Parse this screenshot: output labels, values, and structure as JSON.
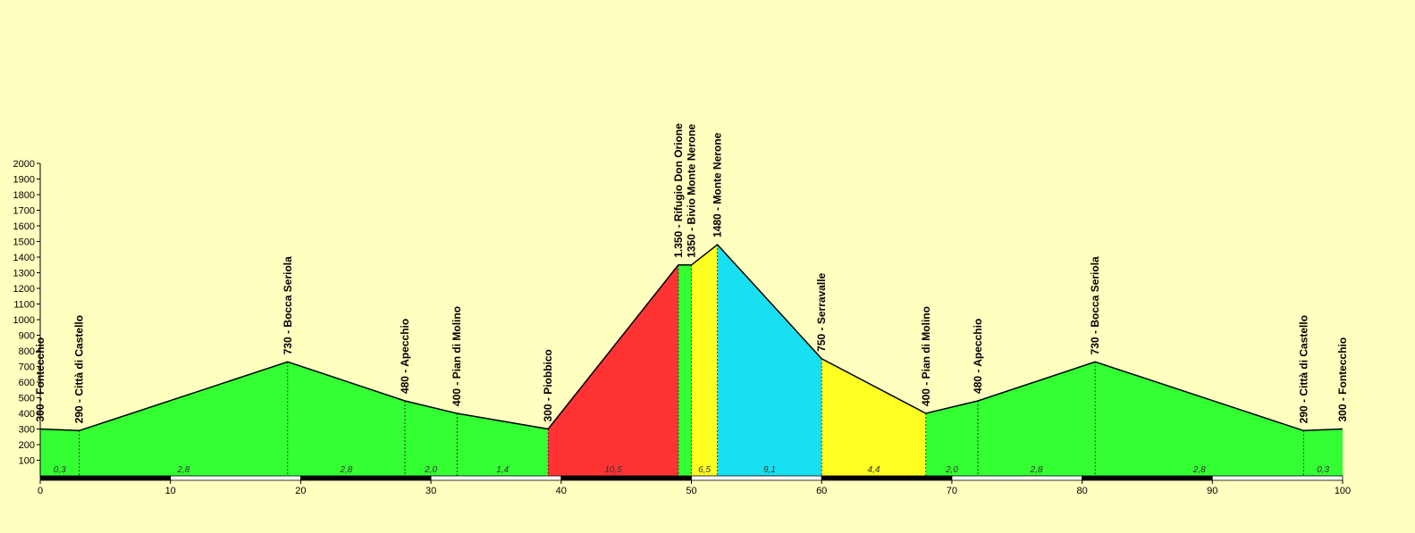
{
  "chart_data": {
    "type": "area",
    "title": "",
    "xlabel": "",
    "ylabel": "",
    "xlim": [
      0,
      100
    ],
    "ylim": [
      0,
      2000
    ],
    "x_ticks": [
      0,
      10,
      20,
      30,
      40,
      50,
      60,
      70,
      80,
      90,
      100
    ],
    "y_ticks": [
      100,
      200,
      300,
      400,
      500,
      600,
      700,
      800,
      900,
      1000,
      1100,
      1200,
      1300,
      1400,
      1500,
      1600,
      1700,
      1800,
      1900,
      2000
    ],
    "profile": [
      {
        "x": 0,
        "y": 300
      },
      {
        "x": 3,
        "y": 290
      },
      {
        "x": 19,
        "y": 730
      },
      {
        "x": 28,
        "y": 480
      },
      {
        "x": 32,
        "y": 400
      },
      {
        "x": 39,
        "y": 300
      },
      {
        "x": 49,
        "y": 1350
      },
      {
        "x": 50,
        "y": 1350
      },
      {
        "x": 52,
        "y": 1480
      },
      {
        "x": 60,
        "y": 750
      },
      {
        "x": 68,
        "y": 400
      },
      {
        "x": 72,
        "y": 480
      },
      {
        "x": 81,
        "y": 730
      },
      {
        "x": 97,
        "y": 290
      },
      {
        "x": 100,
        "y": 300
      }
    ],
    "waypoints": [
      {
        "x": 0,
        "label": "300 - Fontecchio"
      },
      {
        "x": 3,
        "label": "290 - Città di Castello"
      },
      {
        "x": 19,
        "label": "730 - Bocca Seriola"
      },
      {
        "x": 28,
        "label": "480 - Apecchio"
      },
      {
        "x": 32,
        "label": "400 - Pian di Molino"
      },
      {
        "x": 39,
        "label": "300 - Piobbico"
      },
      {
        "x": 49,
        "label": "1.350 - Rifugio Don Orione"
      },
      {
        "x": 50,
        "label": "1350 - Bivio Monte Nerone"
      },
      {
        "x": 52,
        "label": "1480 - Monte Nerone"
      },
      {
        "x": 60,
        "label": "750 - Serravalle"
      },
      {
        "x": 68,
        "label": "400 - Pian di Molino"
      },
      {
        "x": 72,
        "label": "480 - Apecchio"
      },
      {
        "x": 81,
        "label": "730 - Bocca Seriola"
      },
      {
        "x": 97,
        "label": "290 - Città di Castello"
      },
      {
        "x": 100,
        "label": "300 - Fontecchio"
      }
    ],
    "segments": [
      {
        "from": 0,
        "to": 3,
        "grade": "0,3",
        "color": "#33ff33"
      },
      {
        "from": 3,
        "to": 19,
        "grade": "2,8",
        "color": "#33ff33"
      },
      {
        "from": 19,
        "to": 28,
        "grade": "2,8",
        "color": "#33ff33"
      },
      {
        "from": 28,
        "to": 32,
        "grade": "2,0",
        "color": "#33ff33"
      },
      {
        "from": 32,
        "to": 39,
        "grade": "1,4",
        "color": "#33ff33"
      },
      {
        "from": 39,
        "to": 49,
        "grade": "10,5",
        "color": "#ff3333"
      },
      {
        "from": 49,
        "to": 50,
        "grade": "",
        "color": "#33ff33"
      },
      {
        "from": 50,
        "to": 52,
        "grade": "6,5",
        "color": "#ffff22"
      },
      {
        "from": 52,
        "to": 60,
        "grade": "9,1",
        "color": "#19e0f0"
      },
      {
        "from": 60,
        "to": 68,
        "grade": "4,4",
        "color": "#ffff22"
      },
      {
        "from": 68,
        "to": 72,
        "grade": "2,0",
        "color": "#33ff33"
      },
      {
        "from": 72,
        "to": 81,
        "grade": "2,8",
        "color": "#33ff33"
      },
      {
        "from": 81,
        "to": 97,
        "grade": "2,8",
        "color": "#33ff33"
      },
      {
        "from": 97,
        "to": 100,
        "grade": "0,3",
        "color": "#33ff33"
      }
    ],
    "colors": {
      "background": "#ffffc0",
      "outline": "#000000",
      "scale_dark": "#000000",
      "scale_light": "#ffffff"
    }
  }
}
